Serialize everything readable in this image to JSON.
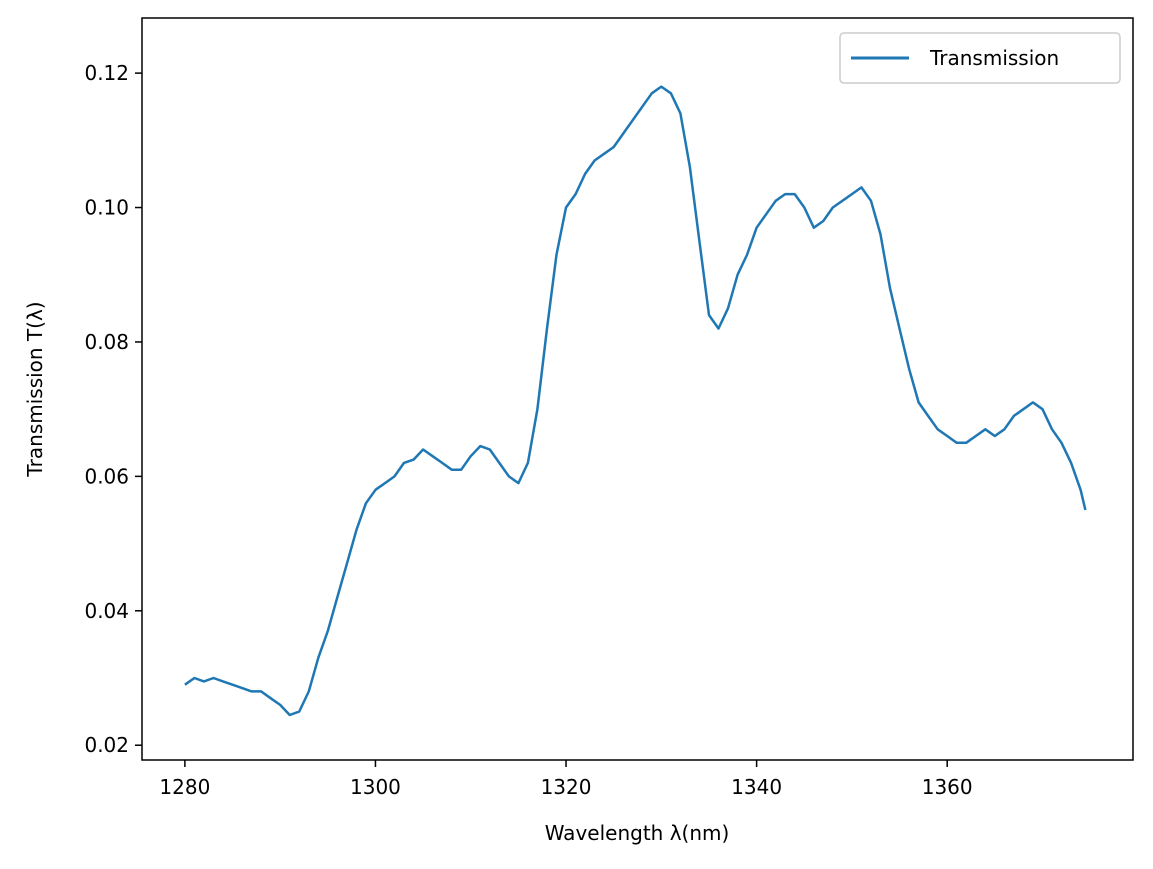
{
  "chart_data": {
    "type": "line",
    "title": "",
    "xlabel": "Wavelength λ(nm)",
    "ylabel": "Transmission T(λ)",
    "xlim": [
      1275.5,
      1379.5
    ],
    "ylim": [
      0.0178,
      0.1282
    ],
    "xticks": [
      1280,
      1300,
      1320,
      1340,
      1360
    ],
    "yticks": [
      0.02,
      0.04,
      0.06,
      0.08,
      0.1,
      0.12
    ],
    "ytick_labels": [
      "0.02",
      "0.04",
      "0.06",
      "0.08",
      "0.10",
      "0.12"
    ],
    "grid": false,
    "legend": {
      "position": "top-right"
    },
    "series": [
      {
        "name": "Transmission",
        "color": "#1f77b4",
        "x": [
          1280,
          1281,
          1282,
          1283,
          1284,
          1285,
          1286,
          1287,
          1288,
          1289,
          1290,
          1291,
          1292,
          1293,
          1294,
          1295,
          1296,
          1297,
          1298,
          1299,
          1300,
          1301,
          1302,
          1303,
          1304,
          1305,
          1306,
          1307,
          1308,
          1309,
          1310,
          1311,
          1312,
          1313,
          1314,
          1315,
          1316,
          1317,
          1318,
          1319,
          1320,
          1321,
          1322,
          1323,
          1324,
          1325,
          1326,
          1327,
          1328,
          1329,
          1330,
          1331,
          1332,
          1333,
          1334,
          1335,
          1336,
          1337,
          1338,
          1339,
          1340,
          1341,
          1342,
          1343,
          1344,
          1345,
          1346,
          1347,
          1348,
          1349,
          1350,
          1351,
          1352,
          1353,
          1354,
          1355,
          1356,
          1357,
          1358,
          1359,
          1360,
          1361,
          1362,
          1363,
          1364,
          1365,
          1366,
          1367,
          1368,
          1369,
          1370,
          1371,
          1372,
          1373,
          1374,
          1374.5
        ],
        "y": [
          0.029,
          0.03,
          0.0295,
          0.03,
          0.0295,
          0.029,
          0.0285,
          0.028,
          0.028,
          0.027,
          0.026,
          0.0245,
          0.025,
          0.028,
          0.033,
          0.037,
          0.042,
          0.047,
          0.052,
          0.056,
          0.058,
          0.059,
          0.06,
          0.062,
          0.0625,
          0.064,
          0.063,
          0.062,
          0.061,
          0.061,
          0.063,
          0.0645,
          0.064,
          0.062,
          0.06,
          0.059,
          0.062,
          0.07,
          0.082,
          0.093,
          0.1,
          0.102,
          0.105,
          0.107,
          0.108,
          0.109,
          0.111,
          0.113,
          0.115,
          0.117,
          0.118,
          0.117,
          0.114,
          0.106,
          0.095,
          0.084,
          0.082,
          0.085,
          0.09,
          0.093,
          0.097,
          0.099,
          0.101,
          0.102,
          0.102,
          0.1,
          0.097,
          0.098,
          0.1,
          0.101,
          0.102,
          0.103,
          0.101,
          0.096,
          0.088,
          0.082,
          0.076,
          0.071,
          0.069,
          0.067,
          0.066,
          0.065,
          0.065,
          0.066,
          0.067,
          0.066,
          0.067,
          0.069,
          0.07,
          0.071,
          0.07,
          0.067,
          0.065,
          0.062,
          0.058,
          0.055
        ]
      }
    ]
  }
}
